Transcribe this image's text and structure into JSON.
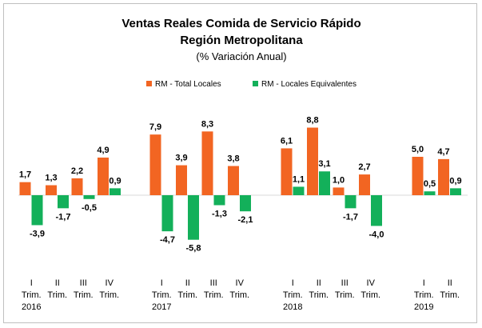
{
  "chart_data": {
    "type": "bar",
    "title": "Ventas Reales Comida de Servicio Rápido",
    "subtitle": "Región Metropolitana",
    "subtitle2": "(% Variación Anual)",
    "legend_position": "top",
    "ylim": [
      -7,
      10
    ],
    "grid": false,
    "groups": [
      {
        "year": "2016",
        "quarters": [
          {
            "roman": "I",
            "trim": "Trim.",
            "total": 1.7,
            "equiv": -3.9
          },
          {
            "roman": "II",
            "trim": "Trim.",
            "total": 1.3,
            "equiv": -1.7
          },
          {
            "roman": "III",
            "trim": "Trim.",
            "total": 2.2,
            "equiv": -0.5
          },
          {
            "roman": "IV",
            "trim": "Trim.",
            "total": 4.9,
            "equiv": 0.9
          }
        ]
      },
      {
        "year": "2017",
        "quarters": [
          {
            "roman": "I",
            "trim": "Trim.",
            "total": 7.9,
            "equiv": -4.7
          },
          {
            "roman": "II",
            "trim": "Trim.",
            "total": 3.9,
            "equiv": -5.8
          },
          {
            "roman": "III",
            "trim": "Trim.",
            "total": 8.3,
            "equiv": -1.3
          },
          {
            "roman": "IV",
            "trim": "Trim.",
            "total": 3.8,
            "equiv": -2.1
          }
        ]
      },
      {
        "year": "2018",
        "quarters": [
          {
            "roman": "I",
            "trim": "Trim.",
            "total": 6.1,
            "equiv": 1.1
          },
          {
            "roman": "II",
            "trim": "Trim.",
            "total": 8.8,
            "equiv": 3.1
          },
          {
            "roman": "III",
            "trim": "Trim.",
            "total": 1.0,
            "equiv": -1.7
          },
          {
            "roman": "IV",
            "trim": "Trim.",
            "total": 2.7,
            "equiv": -4.0
          }
        ]
      },
      {
        "year": "2019",
        "quarters": [
          {
            "roman": "I",
            "trim": "Trim.",
            "total": 5.0,
            "equiv": 0.5
          },
          {
            "roman": "II",
            "trim": "Trim.",
            "total": 4.7,
            "equiv": 0.9
          }
        ]
      }
    ],
    "series": [
      {
        "key": "total",
        "name": "RM - Total Locales",
        "color": "#F26522"
      },
      {
        "key": "equiv",
        "name": "RM - Locales Equivalentes",
        "color": "#13B05A"
      }
    ]
  }
}
